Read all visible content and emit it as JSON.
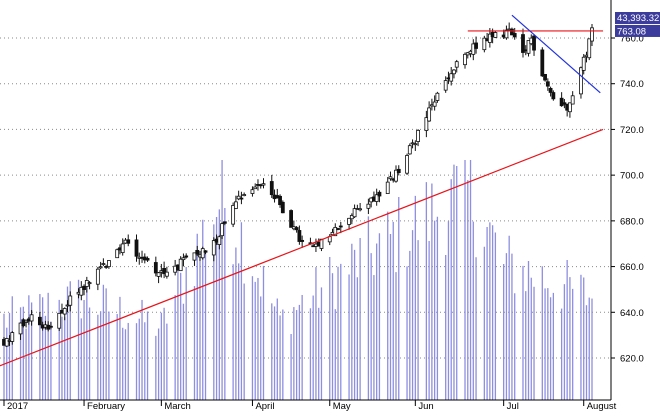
{
  "chart_data": {
    "type": "candlestick",
    "x_axis": {
      "labels": [
        "2017",
        "February",
        "March",
        "April",
        "May",
        "Jun",
        "Jul",
        "August"
      ],
      "tick_dates": [
        "2017-01-03",
        "2017-02-01",
        "2017-03-01",
        "2017-04-03",
        "2017-05-01",
        "2017-06-01",
        "2017-07-03",
        "2017-08-01"
      ]
    },
    "y_axis": {
      "ticks": [
        "620.0",
        "640.0",
        "660.0",
        "680.0",
        "700.0",
        "720.0",
        "740.0",
        "760.0"
      ],
      "range": [
        608,
        770
      ]
    },
    "badges": {
      "volume_label": "43,393.32",
      "last_price_label": "763.08",
      "last_price": 763.08
    },
    "price_keypoints": [
      {
        "date": "2017-01-03",
        "close": 627
      },
      {
        "date": "2017-01-13",
        "close": 638
      },
      {
        "date": "2017-01-20",
        "close": 632
      },
      {
        "date": "2017-01-27",
        "close": 646
      },
      {
        "date": "2017-02-08",
        "close": 660
      },
      {
        "date": "2017-02-16",
        "close": 671
      },
      {
        "date": "2017-02-22",
        "close": 664
      },
      {
        "date": "2017-03-02",
        "close": 656
      },
      {
        "date": "2017-03-10",
        "close": 663
      },
      {
        "date": "2017-03-20",
        "close": 670
      },
      {
        "date": "2017-03-28",
        "close": 690
      },
      {
        "date": "2017-04-07",
        "close": 697
      },
      {
        "date": "2017-04-14",
        "close": 685
      },
      {
        "date": "2017-04-21",
        "close": 670
      },
      {
        "date": "2017-04-26",
        "close": 668
      },
      {
        "date": "2017-05-05",
        "close": 678
      },
      {
        "date": "2017-05-12",
        "close": 686
      },
      {
        "date": "2017-05-19",
        "close": 692
      },
      {
        "date": "2017-05-26",
        "close": 702
      },
      {
        "date": "2017-06-02",
        "close": 718
      },
      {
        "date": "2017-06-09",
        "close": 735
      },
      {
        "date": "2017-06-16",
        "close": 748
      },
      {
        "date": "2017-06-23",
        "close": 757
      },
      {
        "date": "2017-06-28",
        "close": 760
      },
      {
        "date": "2017-07-05",
        "close": 763
      },
      {
        "date": "2017-07-10",
        "close": 752
      },
      {
        "date": "2017-07-13",
        "close": 760
      },
      {
        "date": "2017-07-17",
        "close": 745
      },
      {
        "date": "2017-07-21",
        "close": 733
      },
      {
        "date": "2017-07-26",
        "close": 730
      },
      {
        "date": "2017-08-01",
        "close": 750
      },
      {
        "date": "2017-08-04",
        "close": 763.08
      }
    ],
    "volume_keypoints": [
      {
        "date": "2017-01-03",
        "value": 0.35
      },
      {
        "date": "2017-01-31",
        "value": 0.45
      },
      {
        "date": "2017-03-01",
        "value": 0.32
      },
      {
        "date": "2017-03-23",
        "value": 0.9
      },
      {
        "date": "2017-04-13",
        "value": 0.35
      },
      {
        "date": "2017-05-10",
        "value": 0.6
      },
      {
        "date": "2017-06-20",
        "value": 0.92
      },
      {
        "date": "2017-07-03",
        "value": 0.6
      },
      {
        "date": "2017-08-04",
        "value": 0.45
      }
    ],
    "lines": [
      {
        "role": "uptrend",
        "color": "#e8141a",
        "from": {
          "date": "2016-12-27",
          "price": 614
        },
        "to": {
          "date": "2017-08-08",
          "price": 720
        }
      },
      {
        "role": "resistance",
        "color": "#e8141a",
        "from": {
          "date": "2017-06-20",
          "price": 763.08
        },
        "to": {
          "date": "2017-08-08",
          "price": 763.08
        }
      },
      {
        "role": "downtrend",
        "color": "#2233dd",
        "from": {
          "date": "2017-07-06",
          "price": 770
        },
        "to": {
          "date": "2017-08-07",
          "price": 736
        }
      }
    ],
    "colors": {
      "candle": "#111111",
      "volume": "#8e8ee0",
      "grid": "#8a8a8a",
      "badge_fill": "#3c3c9c",
      "badge_text": "#ffffff"
    },
    "grid": "dotted horizontal"
  }
}
